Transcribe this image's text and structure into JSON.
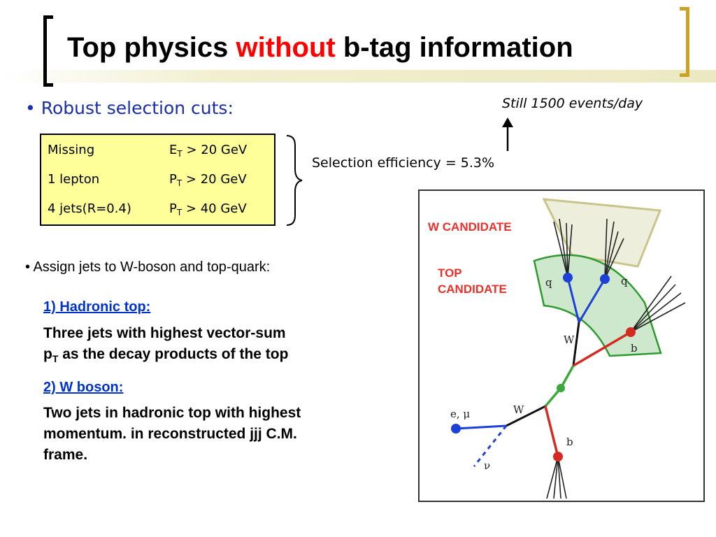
{
  "header": {
    "title_pre": "Top physics ",
    "title_highlight": "without",
    "title_post": " b-tag information"
  },
  "selection": {
    "heading": "• Robust selection cuts:",
    "cuts": [
      {
        "name": "Missing",
        "var": "E",
        "sub": "T",
        "cond": " > 20 GeV"
      },
      {
        "name": "1 lepton",
        "var": "P",
        "sub": "T",
        "cond": " > 20 GeV"
      },
      {
        "name": "4 jets(R=0.4)",
        "var": "P",
        "sub": "T",
        "cond": " > 40 GeV"
      }
    ],
    "efficiency": "Selection efficiency = 5.3%",
    "events": "Still 1500 events/day"
  },
  "assignment": {
    "heading": "• Assign jets to W-boson and top-quark:",
    "hadronic_top_title": "1) Hadronic top:",
    "hadronic_top_line1": "Three jets with highest vector-sum",
    "hadronic_top_line2_pre": "p",
    "hadronic_top_line2_sub": "T",
    "hadronic_top_line2_post": " as the decay products of the top",
    "w_boson_title": "2) W boson:",
    "w_boson_line1": "Two jets in hadronic top with highest",
    "w_boson_line2": "momentum. in reconstructed jjj C.M.",
    "w_boson_line3": "frame."
  },
  "diagram": {
    "w_candidate": "W CANDIDATE",
    "top_candidate_1": "TOP",
    "top_candidate_2": "CANDIDATE",
    "label_q1": "q",
    "label_q2": "q",
    "label_w_upper": "W",
    "label_b_upper": "b",
    "label_w_lower": "W",
    "label_lepton": "e, μ",
    "label_b_lower": "b",
    "label_nu": "ν",
    "colors": {
      "w_fill": "#eeeedd",
      "w_stroke": "#c8c48a",
      "top_fill": "#cde8cd",
      "top_stroke": "#2e9a2e",
      "lepton": "#1d40d8",
      "bquark": "#d42a20",
      "top_line": "#3aa83a"
    }
  }
}
